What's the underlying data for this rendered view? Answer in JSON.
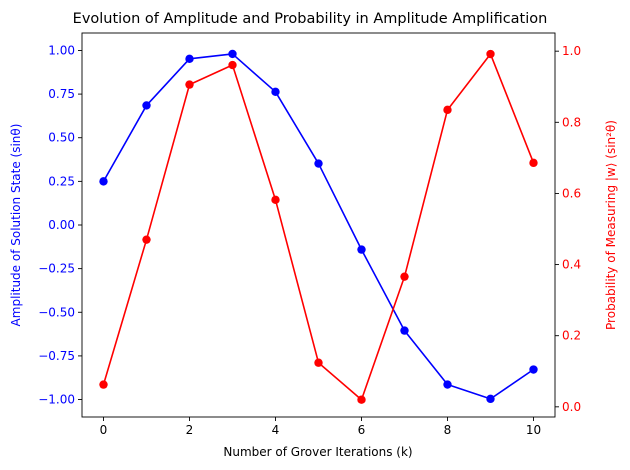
{
  "chart_data": {
    "type": "line",
    "title": "Evolution of Amplitude and Probability in Amplitude Amplification",
    "xlabel": "Number of Grover Iterations (k)",
    "x": [
      0,
      1,
      2,
      3,
      4,
      5,
      6,
      7,
      8,
      9,
      10
    ],
    "xlim": [
      -0.5,
      10.5
    ],
    "xticks": [
      0,
      2,
      4,
      6,
      8,
      10
    ],
    "xtick_labels": [
      "0",
      "2",
      "4",
      "6",
      "8",
      "10"
    ],
    "grid": false,
    "series": [
      {
        "name": "Amplitude of Solution State (sinθ)",
        "axis": "left",
        "color": "#0000ff",
        "values": [
          0.25,
          0.685,
          0.952,
          0.98,
          0.763,
          0.352,
          -0.141,
          -0.605,
          -0.914,
          -0.996,
          -0.828
        ]
      },
      {
        "name": "Probability of Measuring |w⟩ (sin²θ)",
        "axis": "right",
        "color": "#ff0000",
        "values": [
          0.0625,
          0.47,
          0.906,
          0.961,
          0.582,
          0.124,
          0.02,
          0.366,
          0.835,
          0.992,
          0.686
        ]
      }
    ],
    "left_axis": {
      "label": "Amplitude of Solution State (sinθ)",
      "color": "#0000ff",
      "ylim": [
        -1.1,
        1.1
      ],
      "ticks": [
        -1.0,
        -0.75,
        -0.5,
        -0.25,
        0.0,
        0.25,
        0.5,
        0.75,
        1.0
      ],
      "tick_labels": [
        "−1.00",
        "−0.75",
        "−0.50",
        "−0.25",
        "0.00",
        "0.25",
        "0.50",
        "0.75",
        "1.00"
      ]
    },
    "right_axis": {
      "label": "Probability of Measuring |w⟩ (sin²θ)",
      "color": "#ff0000",
      "ylim": [
        -0.0286,
        1.0511
      ],
      "ticks": [
        0.0,
        0.2,
        0.4,
        0.6,
        0.8,
        1.0
      ],
      "tick_labels": [
        "0.0",
        "0.2",
        "0.4",
        "0.6",
        "0.8",
        "1.0"
      ]
    }
  }
}
